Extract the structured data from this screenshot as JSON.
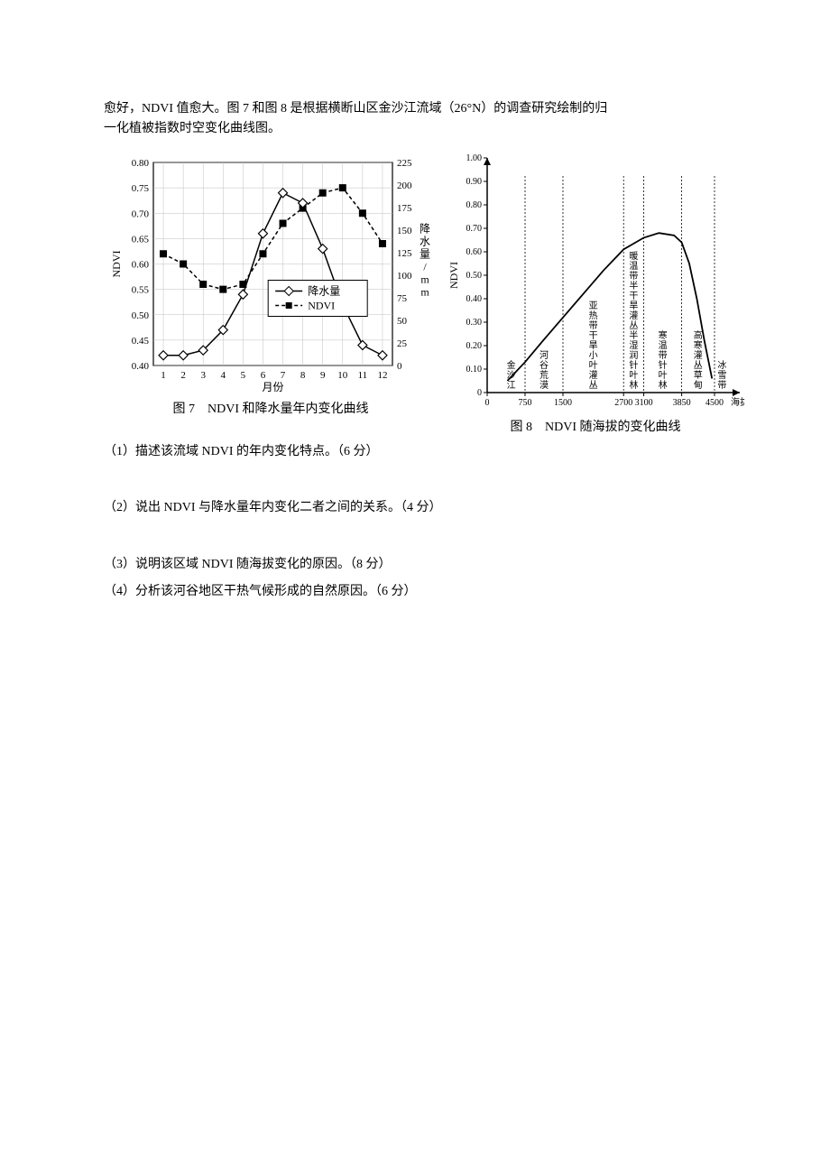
{
  "intro": {
    "line1": "愈好，NDVI 值愈大。图 7 和图 8 是根据横断山区金沙江流域（26°N）的调查研究绘制的归",
    "line2": "一化植被指数时空变化曲线图。"
  },
  "fig7": {
    "type": "line-combo",
    "caption": "图 7　NDVI 和降水量年内变化曲线",
    "left_axis_label": "NDVI",
    "right_axis_label": "降水量/mm",
    "x_axis_label": "月份",
    "x_ticks": [
      "1",
      "2",
      "3",
      "4",
      "5",
      "6",
      "7",
      "8",
      "9",
      "10",
      "11",
      "12"
    ],
    "ndvi_ticks": [
      "0.40",
      "0.45",
      "0.50",
      "0.55",
      "0.60",
      "0.65",
      "0.70",
      "0.75",
      "0.80"
    ],
    "precip_ticks": [
      "0",
      "25",
      "50",
      "75",
      "100",
      "125",
      "150",
      "175",
      "200",
      "225"
    ],
    "ndvi_values": [
      0.62,
      0.6,
      0.56,
      0.55,
      0.56,
      0.62,
      0.68,
      0.71,
      0.74,
      0.75,
      0.7,
      0.64
    ],
    "precip_values": [
      0.42,
      0.42,
      0.43,
      0.47,
      0.54,
      0.66,
      0.74,
      0.72,
      0.63,
      0.52,
      0.44,
      0.42
    ],
    "legend": {
      "precip": "降水量",
      "ndvi": "NDVI"
    },
    "colors": {
      "line": "#000000",
      "grid": "#bfbfbf",
      "bg": "#ffffff",
      "axis": "#000000",
      "ndvi_marker_fill": "#000000",
      "precip_marker_fill": "#ffffff"
    },
    "font": {
      "tick_size": 11,
      "axis_label_size": 12
    }
  },
  "fig8": {
    "type": "line",
    "caption": "图 8　NDVI 随海拔的变化曲线",
    "y_axis_label": "NDVI",
    "x_axis_label": "海拔/m",
    "y_ticks": [
      "0",
      "0.10",
      "0.20",
      "0.30",
      "0.40",
      "0.50",
      "0.60",
      "0.70",
      "0.80",
      "0.90",
      "1.00"
    ],
    "x_ticks": [
      "0",
      "750",
      "1500",
      "2700",
      "3100",
      "3850",
      "4500"
    ],
    "curve": [
      {
        "x": 400,
        "y": 0.05
      },
      {
        "x": 750,
        "y": 0.13
      },
      {
        "x": 1100,
        "y": 0.22
      },
      {
        "x": 1500,
        "y": 0.32
      },
      {
        "x": 1900,
        "y": 0.42
      },
      {
        "x": 2300,
        "y": 0.52
      },
      {
        "x": 2700,
        "y": 0.61
      },
      {
        "x": 3100,
        "y": 0.66
      },
      {
        "x": 3400,
        "y": 0.68
      },
      {
        "x": 3700,
        "y": 0.67
      },
      {
        "x": 3850,
        "y": 0.64
      },
      {
        "x": 4000,
        "y": 0.55
      },
      {
        "x": 4150,
        "y": 0.4
      },
      {
        "x": 4300,
        "y": 0.22
      },
      {
        "x": 4450,
        "y": 0.06
      }
    ],
    "veg_boundaries": [
      750,
      1500,
      2700,
      3100,
      3850,
      4500
    ],
    "veg_labels": [
      "金沙江",
      "河谷荒漠",
      "亚热带干旱小叶灌丛",
      "暖温带半干旱灌丛半湿润针叶林",
      "寒温带针叶林",
      "高寒灌丛草甸",
      "冰雪带"
    ],
    "colors": {
      "line": "#000000",
      "grid": "#cccccc",
      "bg": "#ffffff",
      "axis": "#000000"
    },
    "font": {
      "tick_size": 10,
      "veg_size": 10
    }
  },
  "questions": {
    "q1": "（1）描述该流域 NDVI 的年内变化特点。（6 分）",
    "q2": "（2）说出 NDVI 与降水量年内变化二者之间的关系。（4 分）",
    "q3": "（3）说明该区域 NDVI 随海拔变化的原因。（8 分）",
    "q4": "（4）分析该河谷地区干热气候形成的自然原因。（6 分）"
  }
}
